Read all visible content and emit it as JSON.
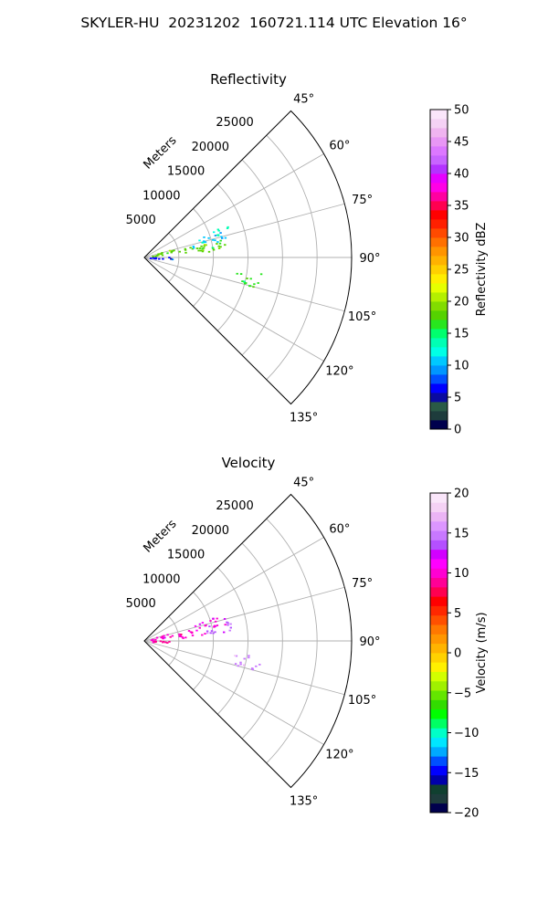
{
  "page": {
    "title": "SKYLER-HU  20231202  160721.114 UTC Elevation 16°"
  },
  "chart_data": [
    {
      "type": "heatmap",
      "projection": "polar-sector",
      "title": "Reflectivity",
      "range_axis_label": "Meters",
      "range_ticks": [
        "5000",
        "10000",
        "15000",
        "20000",
        "25000"
      ],
      "azimuth_ticks": [
        "45°",
        "60°",
        "75°",
        "90°",
        "105°",
        "120°",
        "135°"
      ],
      "azimuth_range_deg": [
        45,
        135
      ],
      "max_range_m": 30000,
      "colorbar": {
        "label": "Reflectivity dBZ",
        "min": 0,
        "max": 50,
        "ticks": [
          "0",
          "5",
          "10",
          "15",
          "20",
          "25",
          "30",
          "35",
          "40",
          "45",
          "50"
        ]
      },
      "echo_regions": [
        {
          "az_deg": [
            71,
            80
          ],
          "range_m": [
            800,
            4500
          ],
          "level": 18
        },
        {
          "az_deg": [
            76,
            85
          ],
          "range_m": [
            5000,
            12000
          ],
          "level": 18
        },
        {
          "az_deg": [
            70,
            78
          ],
          "range_m": [
            7000,
            12000
          ],
          "level": 11
        },
        {
          "az_deg": [
            68,
            74
          ],
          "range_m": [
            10500,
            13000
          ],
          "level": 13
        },
        {
          "az_deg": [
            97,
            105
          ],
          "range_m": [
            13000,
            17000
          ],
          "level": 17
        },
        {
          "az_deg": [
            88,
            95
          ],
          "range_m": [
            600,
            4000
          ],
          "level": 7
        }
      ]
    },
    {
      "type": "heatmap",
      "projection": "polar-sector",
      "title": "Velocity",
      "range_axis_label": "Meters",
      "range_ticks": [
        "5000",
        "10000",
        "15000",
        "20000",
        "25000"
      ],
      "azimuth_ticks": [
        "45°",
        "60°",
        "75°",
        "90°",
        "105°",
        "120°",
        "135°"
      ],
      "azimuth_range_deg": [
        45,
        135
      ],
      "max_range_m": 30000,
      "colorbar": {
        "label": "Velocity (m/s)",
        "min": -20,
        "max": 20,
        "ticks": [
          "−20",
          "−15",
          "−10",
          "−5",
          "0",
          "5",
          "10",
          "15",
          "20"
        ]
      },
      "echo_regions": [
        {
          "az_deg": [
            71,
            80
          ],
          "range_m": [
            800,
            4500
          ],
          "level": 10
        },
        {
          "az_deg": [
            76,
            85
          ],
          "range_m": [
            5000,
            9000
          ],
          "level": 10
        },
        {
          "az_deg": [
            76,
            84
          ],
          "range_m": [
            9000,
            13000
          ],
          "level": 14
        },
        {
          "az_deg": [
            70,
            78
          ],
          "range_m": [
            7000,
            12000
          ],
          "level": 10
        },
        {
          "az_deg": [
            97,
            105
          ],
          "range_m": [
            13000,
            17000
          ],
          "level": 15
        },
        {
          "az_deg": [
            88,
            95
          ],
          "range_m": [
            600,
            4000
          ],
          "level": 9
        }
      ]
    }
  ]
}
